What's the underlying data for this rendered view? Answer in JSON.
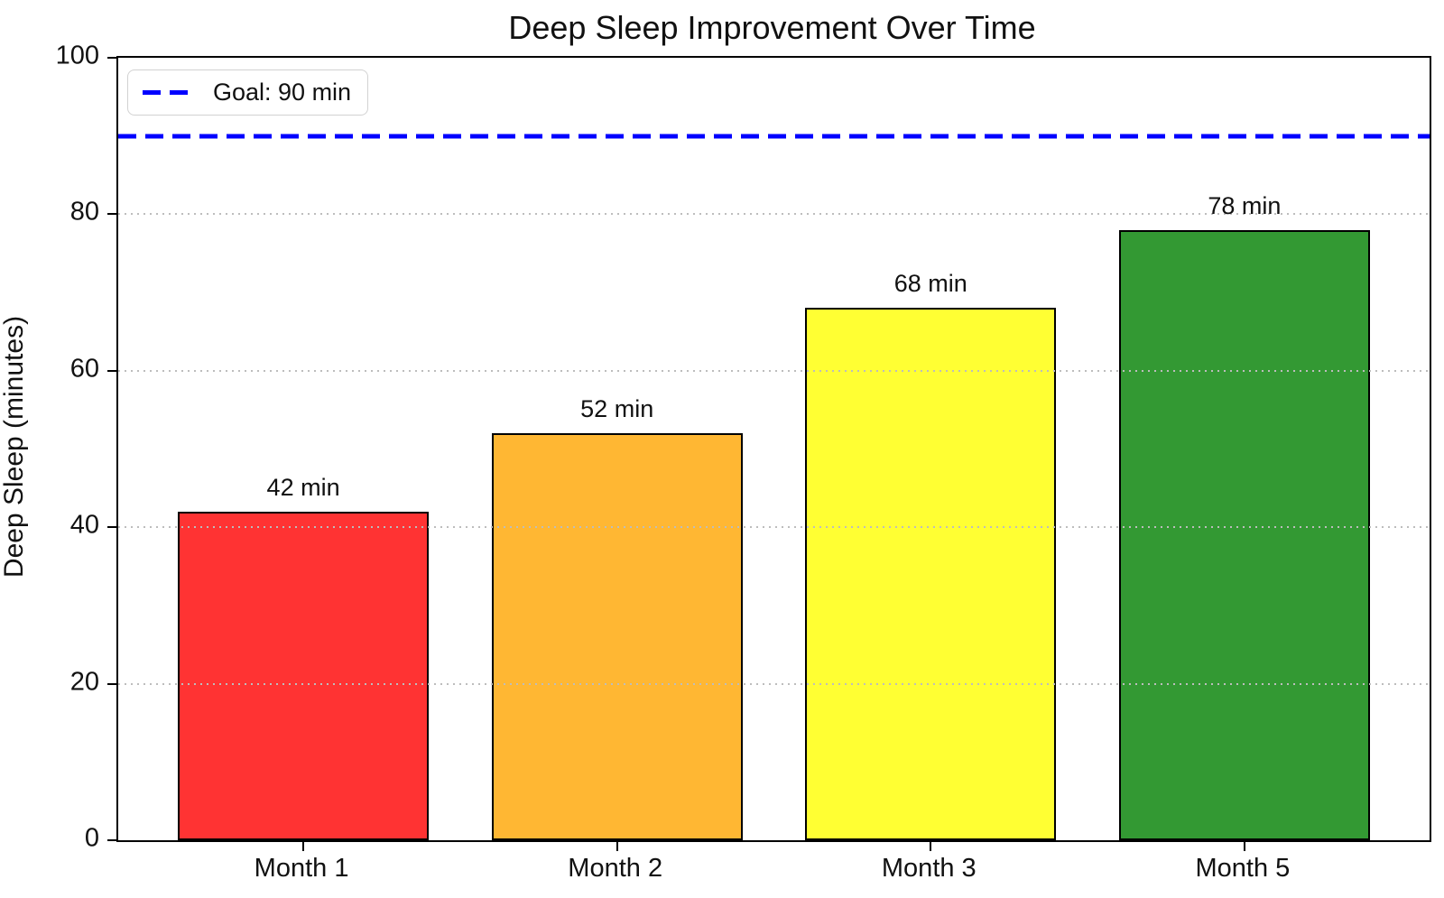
{
  "chart_data": {
    "type": "bar",
    "title": "Deep Sleep Improvement Over Time",
    "xlabel": "",
    "ylabel": "Deep Sleep (minutes)",
    "categories": [
      "Month 1",
      "Month 2",
      "Month 3",
      "Month 5"
    ],
    "values": [
      42,
      52,
      68,
      78
    ],
    "bar_value_labels": [
      "42 min",
      "52 min",
      "68 min",
      "78 min"
    ],
    "bar_colors": [
      "#ff3333",
      "#ffb733",
      "#ffff33",
      "#339933"
    ],
    "bar_edge_color": "#000000",
    "ylim": [
      0,
      100
    ],
    "yticks": [
      0,
      20,
      40,
      60,
      80,
      100
    ],
    "grid": {
      "axis": "y",
      "style": "dotted",
      "color": "#bdbdbd",
      "drawn_above_bars": true
    },
    "goal_line": {
      "value": 90,
      "color": "#0000ff",
      "style": "dashed",
      "label": "Goal: 90 min"
    },
    "legend": {
      "position": "upper-left",
      "entries": [
        {
          "label": "Goal: 90 min",
          "color": "#0000ff",
          "style": "dashed"
        }
      ]
    }
  }
}
